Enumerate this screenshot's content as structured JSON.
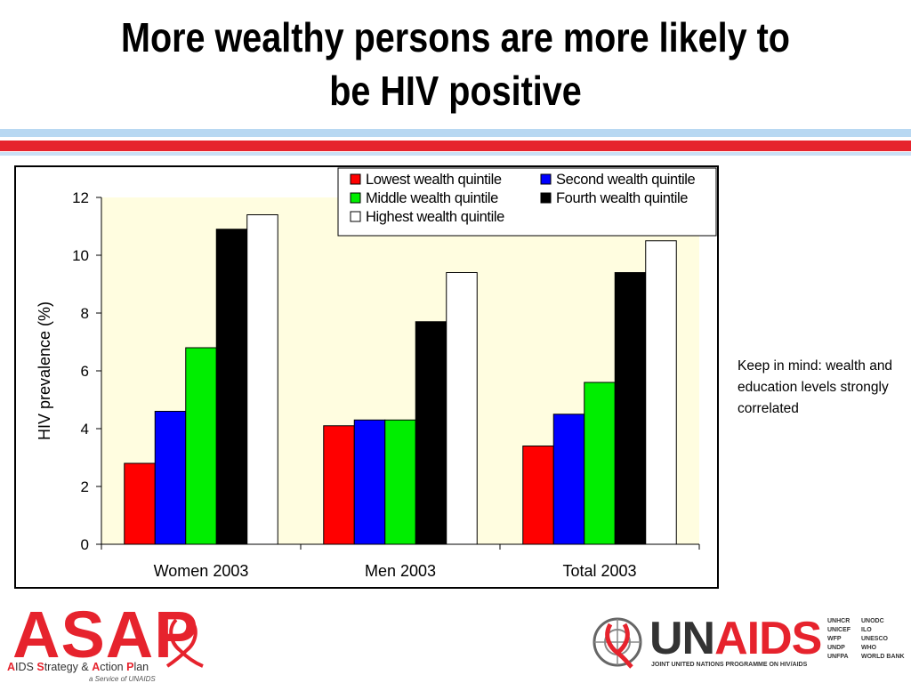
{
  "slide": {
    "title_line1": "More wealthy persons are more likely to",
    "title_line2": "be HIV positive",
    "note": "Keep in mind: wealth and education levels strongly correlated",
    "accent_red": "#e6232d",
    "accent_blue": "#b8d8f2"
  },
  "chart_data": {
    "type": "bar",
    "categories": [
      "Women 2003",
      "Men 2003",
      "Total 2003"
    ],
    "ylabel": "HIV  prevalence (%)",
    "xlabel": "",
    "ylim": [
      0,
      12
    ],
    "yticks": [
      "0",
      "2",
      "4",
      "6",
      "8",
      "10",
      "12"
    ],
    "grid": false,
    "plot_background": "#fffde0",
    "legend_position": "top-right",
    "series": [
      {
        "name": "Lowest wealth quintile",
        "color": "#ff0000",
        "values": [
          2.8,
          4.1,
          3.4
        ]
      },
      {
        "name": "Second wealth quintile",
        "color": "#0000ff",
        "values": [
          4.6,
          4.3,
          4.5
        ]
      },
      {
        "name": "Middle wealth quintile",
        "color": "#00ee00",
        "values": [
          6.8,
          4.3,
          5.6
        ]
      },
      {
        "name": "Fourth wealth quintile",
        "color": "#000000",
        "values": [
          10.9,
          7.7,
          9.4
        ]
      },
      {
        "name": "Highest wealth quintile",
        "color": "#ffffff",
        "values": [
          11.4,
          9.4,
          10.5
        ]
      }
    ]
  },
  "logos": {
    "asap_word": "ASAP",
    "asap_a": "A",
    "asap_ids": "IDS ",
    "asap_s": "S",
    "asap_trategy": "trategy & ",
    "asap_a2": "A",
    "asap_ction": "ction ",
    "asap_p": "P",
    "asap_lan": "lan",
    "asap_service": "a Service of UNAIDS",
    "unaids_un": "UN",
    "unaids_aids": "AIDS",
    "unaids_tagline": "JOINT UNITED NATIONS PROGRAMME ON HIV/AIDS",
    "cosponsors_left": [
      "UNHCR",
      "UNICEF",
      "WFP",
      "UNDP",
      "UNFPA"
    ],
    "cosponsors_right": [
      "UNODC",
      "ILO",
      "UNESCO",
      "WHO",
      "WORLD BANK"
    ]
  }
}
